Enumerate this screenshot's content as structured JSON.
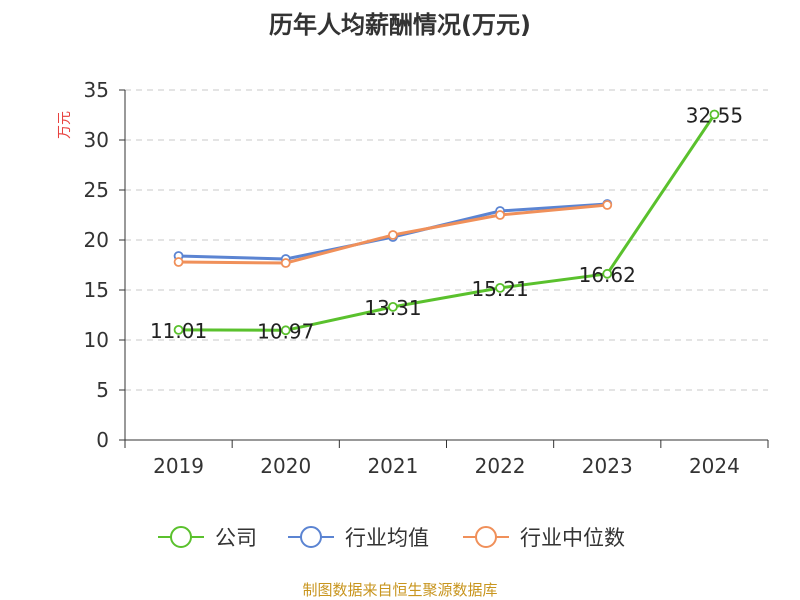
{
  "chart_data": {
    "type": "line",
    "title": "历年人均薪酬情况(万元)",
    "ylabel": "万元",
    "xlabel": "",
    "categories": [
      "2019",
      "2020",
      "2021",
      "2022",
      "2023",
      "2024"
    ],
    "ylim": [
      0,
      35
    ],
    "yticks": [
      0,
      5,
      10,
      15,
      20,
      25,
      30,
      35
    ],
    "grid": true,
    "legend_position": "bottom",
    "series": [
      {
        "name": "公司",
        "color": "#5ac12d",
        "values": [
          11.01,
          10.97,
          13.31,
          15.21,
          16.62,
          32.55
        ],
        "labels": [
          "11.01",
          "10.97",
          "13.31",
          "15.21",
          "16.62",
          "32.55"
        ]
      },
      {
        "name": "行业均值",
        "color": "#5b84d2",
        "values": [
          18.4,
          18.1,
          20.3,
          22.9,
          23.6,
          null
        ]
      },
      {
        "name": "行业中位数",
        "color": "#f0905a",
        "values": [
          17.8,
          17.7,
          20.5,
          22.5,
          23.5,
          null
        ]
      }
    ]
  },
  "source": "制图数据来自恒生聚源数据库"
}
